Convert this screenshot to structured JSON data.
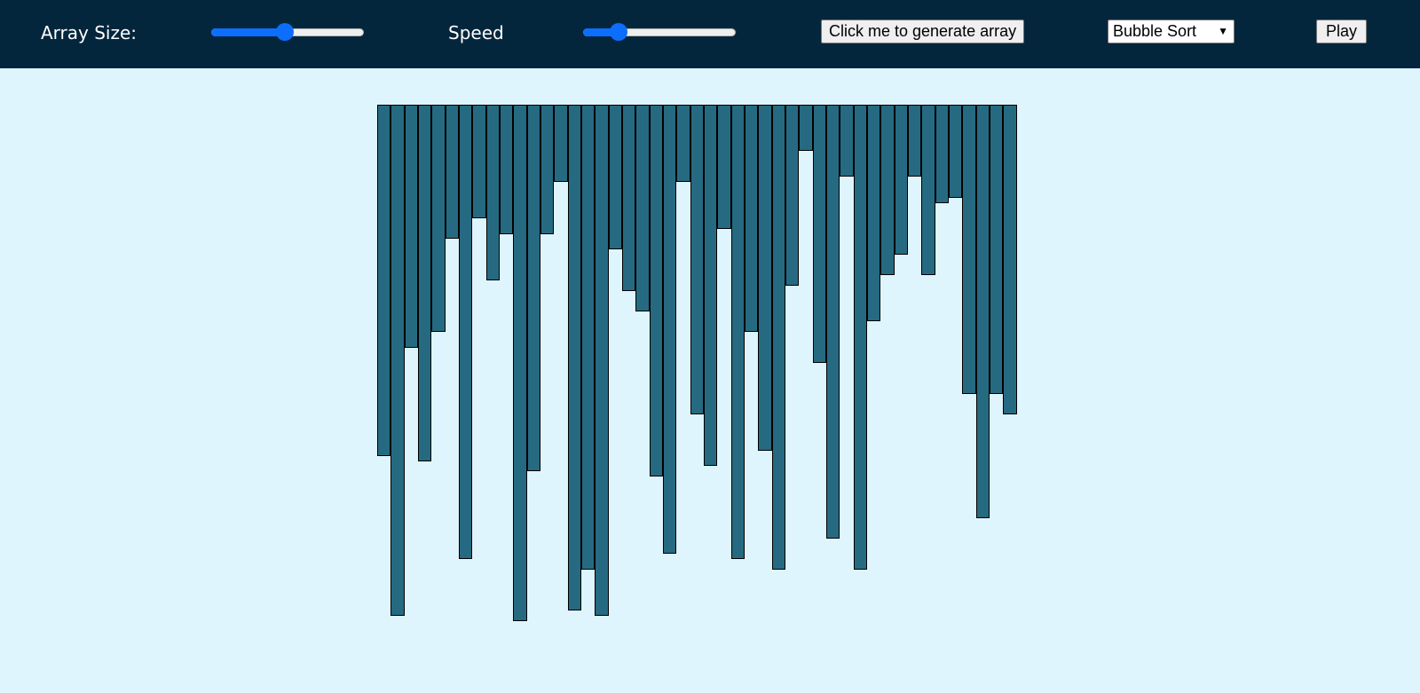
{
  "toolbar": {
    "array_size_label": "Array Size:",
    "speed_label": "Speed",
    "generate_label": "Click me to generate array",
    "algorithm_selected": "Bubble Sort",
    "play_label": "Play",
    "array_size_value": 0.48,
    "speed_value": 0.23
  },
  "colors": {
    "header_bg": "#04263d",
    "page_bg": "#dff5fd",
    "bar_fill": "#266a82",
    "bar_border": "#000000",
    "slider_accent": "#0d6efd"
  },
  "icons": {
    "select_arrow": "chevron-down-icon"
  },
  "array": {
    "max_value": 100,
    "values": [
      68,
      99,
      47,
      69,
      44,
      26,
      88,
      22,
      34,
      25,
      100,
      71,
      25,
      15,
      98,
      90,
      99,
      28,
      36,
      40,
      72,
      87,
      15,
      60,
      70,
      24,
      88,
      44,
      67,
      90,
      35,
      9,
      50,
      84,
      14,
      90,
      42,
      33,
      29,
      14,
      33,
      19,
      18,
      56,
      80,
      56,
      60
    ]
  }
}
